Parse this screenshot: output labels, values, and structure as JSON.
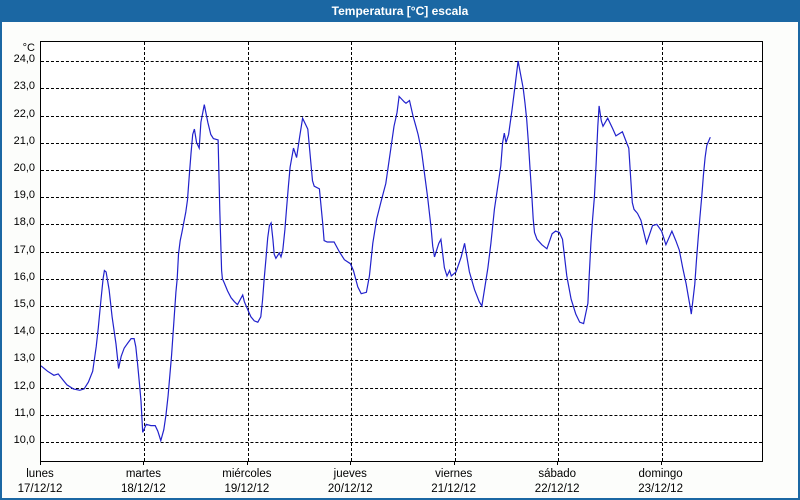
{
  "window": {
    "title": "Temperatura [°C] escala"
  },
  "colors": {
    "titlebar_bg": "#1B67A3",
    "title_text": "#FFFFFF",
    "window_border": "#1B67A3",
    "plot_border": "#000000",
    "gridline": "#000000",
    "line": "#2222CC",
    "plot_background": "#FFFFFF",
    "label_text": "#000000"
  },
  "chart_data": {
    "type": "line",
    "title": "Temperatura [°C] escala",
    "ylabel": "°C",
    "legend_position": "none",
    "grid": "dashed-both-axes",
    "y_axis": {
      "unit_label": "°C",
      "tick_min": 10,
      "tick_max": 24,
      "tick_step": 1,
      "decimal_separator": "comma",
      "visible_range": [
        9.3,
        24.7
      ]
    },
    "x_axis": {
      "unit": "hours from lunes 00:00",
      "visible_range_hours": [
        0,
        167.3
      ],
      "day_width_hours": 24,
      "days": [
        {
          "label": "lunes",
          "date": "17/12/12"
        },
        {
          "label": "martes",
          "date": "18/12/12"
        },
        {
          "label": "miércoles",
          "date": "19/12/12"
        },
        {
          "label": "jueves",
          "date": "20/12/12"
        },
        {
          "label": "viernes",
          "date": "21/12/12"
        },
        {
          "label": "sábado",
          "date": "22/12/12"
        },
        {
          "label": "domingo",
          "date": "23/12/12"
        }
      ]
    },
    "series": [
      {
        "name": "Temperatura",
        "color": "#2222CC",
        "points_hours_temp": [
          [
            0,
            12.8
          ],
          [
            1.5,
            12.6
          ],
          [
            3,
            12.45
          ],
          [
            4,
            12.5
          ],
          [
            5,
            12.3
          ],
          [
            6,
            12.1
          ],
          [
            7.5,
            11.95
          ],
          [
            9,
            11.9
          ],
          [
            10,
            11.95
          ],
          [
            11,
            12.2
          ],
          [
            12,
            12.6
          ],
          [
            12.8,
            13.5
          ],
          [
            13.3,
            14.2
          ],
          [
            13.9,
            15.2
          ],
          [
            14.4,
            16.0
          ],
          [
            14.7,
            16.3
          ],
          [
            15.1,
            16.25
          ],
          [
            15.8,
            15.6
          ],
          [
            16.5,
            14.6
          ],
          [
            17.4,
            13.6
          ],
          [
            18,
            12.7
          ],
          [
            18.6,
            13.15
          ],
          [
            19.3,
            13.45
          ],
          [
            20.2,
            13.65
          ],
          [
            20.9,
            13.8
          ],
          [
            21.6,
            13.8
          ],
          [
            22,
            13.5
          ],
          [
            22.4,
            12.9
          ],
          [
            22.8,
            12.2
          ],
          [
            23.2,
            11.5
          ],
          [
            23.6,
            10.35
          ],
          [
            24.4,
            10.65
          ],
          [
            25.5,
            10.6
          ],
          [
            26.5,
            10.6
          ],
          [
            27.1,
            10.4
          ],
          [
            27.8,
            10.05
          ],
          [
            28.5,
            10.45
          ],
          [
            29,
            11.0
          ],
          [
            29.5,
            11.7
          ],
          [
            30.3,
            13.2
          ],
          [
            31.3,
            15.5
          ],
          [
            31.6,
            16.0
          ],
          [
            31.9,
            16.9
          ],
          [
            32.3,
            17.4
          ],
          [
            32.7,
            17.7
          ],
          [
            33.6,
            18.45
          ],
          [
            34,
            18.9
          ],
          [
            34.4,
            19.8
          ],
          [
            34.8,
            20.6
          ],
          [
            35.2,
            21.3
          ],
          [
            35.6,
            21.5
          ],
          [
            36.1,
            21.0
          ],
          [
            36.7,
            20.8
          ],
          [
            37.1,
            21.75
          ],
          [
            37.9,
            22.4
          ],
          [
            38.7,
            21.75
          ],
          [
            39.4,
            21.3
          ],
          [
            40,
            21.15
          ],
          [
            41.1,
            21.1
          ],
          [
            41.5,
            18.5
          ],
          [
            41.9,
            16.3
          ],
          [
            42.1,
            16.0
          ],
          [
            42.5,
            15.85
          ],
          [
            43.3,
            15.55
          ],
          [
            44.1,
            15.3
          ],
          [
            44.9,
            15.15
          ],
          [
            45.6,
            15.05
          ],
          [
            46.8,
            15.4
          ],
          [
            47.2,
            15.15
          ],
          [
            48,
            14.85
          ],
          [
            48.7,
            14.6
          ],
          [
            49.5,
            14.45
          ],
          [
            50.3,
            14.4
          ],
          [
            51,
            14.6
          ],
          [
            51.4,
            15.2
          ],
          [
            51.8,
            16.0
          ],
          [
            52.2,
            16.75
          ],
          [
            52.6,
            17.5
          ],
          [
            53,
            17.95
          ],
          [
            53.4,
            18.05
          ],
          [
            53.8,
            17.45
          ],
          [
            54.1,
            16.9
          ],
          [
            54.5,
            16.75
          ],
          [
            55.3,
            16.95
          ],
          [
            55.7,
            16.8
          ],
          [
            56.1,
            17.05
          ],
          [
            56.6,
            17.8
          ],
          [
            57,
            18.6
          ],
          [
            57.4,
            19.4
          ],
          [
            57.8,
            20.1
          ],
          [
            58.6,
            20.8
          ],
          [
            59.3,
            20.45
          ],
          [
            60,
            21.2
          ],
          [
            60.7,
            21.9
          ],
          [
            61.9,
            21.5
          ],
          [
            63,
            19.6
          ],
          [
            63.4,
            19.4
          ],
          [
            64.6,
            19.3
          ],
          [
            65.4,
            18.0
          ],
          [
            65.7,
            17.4
          ],
          [
            66.4,
            17.35
          ],
          [
            68,
            17.35
          ],
          [
            69.2,
            17.0
          ],
          [
            70.4,
            16.7
          ],
          [
            71.8,
            16.55
          ],
          [
            72.5,
            16.3
          ],
          [
            73.5,
            15.7
          ],
          [
            74.3,
            15.45
          ],
          [
            75.5,
            15.5
          ],
          [
            76.2,
            16.1
          ],
          [
            77,
            17.3
          ],
          [
            77.9,
            18.2
          ],
          [
            79,
            18.9
          ],
          [
            80,
            19.5
          ],
          [
            81,
            20.6
          ],
          [
            81.9,
            21.6
          ],
          [
            82.6,
            22.1
          ],
          [
            83.1,
            22.7
          ],
          [
            84.3,
            22.5
          ],
          [
            84.7,
            22.45
          ],
          [
            85.5,
            22.55
          ],
          [
            86.3,
            22.0
          ],
          [
            87,
            21.6
          ],
          [
            87.5,
            21.3
          ],
          [
            88.3,
            20.7
          ],
          [
            89.7,
            19.0
          ],
          [
            90.5,
            17.9
          ],
          [
            90.9,
            17.2
          ],
          [
            91.3,
            16.8
          ],
          [
            92.3,
            17.3
          ],
          [
            92.8,
            17.45
          ],
          [
            93.6,
            16.4
          ],
          [
            94.2,
            16.1
          ],
          [
            94.8,
            16.3
          ],
          [
            95.2,
            16.1
          ],
          [
            96.3,
            16.25
          ],
          [
            97.5,
            16.8
          ],
          [
            98.3,
            17.3
          ],
          [
            99.4,
            16.25
          ],
          [
            100.6,
            15.6
          ],
          [
            101.7,
            15.15
          ],
          [
            102.3,
            15.0
          ],
          [
            103.7,
            16.4
          ],
          [
            104.4,
            17.3
          ],
          [
            105.2,
            18.55
          ],
          [
            106,
            19.4
          ],
          [
            106.7,
            20.15
          ],
          [
            107.1,
            21.0
          ],
          [
            107.5,
            21.35
          ],
          [
            107.9,
            21.0
          ],
          [
            108.5,
            21.3
          ],
          [
            109.3,
            22.2
          ],
          [
            110,
            23.1
          ],
          [
            110.7,
            24.0
          ],
          [
            111.9,
            23.0
          ],
          [
            112.3,
            22.45
          ],
          [
            112.7,
            21.85
          ],
          [
            113.1,
            21.0
          ],
          [
            113.5,
            20.0
          ],
          [
            113.9,
            19.0
          ],
          [
            114.2,
            18.2
          ],
          [
            114.5,
            17.7
          ],
          [
            115.1,
            17.45
          ],
          [
            116.2,
            17.25
          ],
          [
            117.4,
            17.1
          ],
          [
            118.6,
            17.65
          ],
          [
            119.4,
            17.75
          ],
          [
            120.3,
            17.7
          ],
          [
            121,
            17.45
          ],
          [
            122,
            16.1
          ],
          [
            123,
            15.25
          ],
          [
            124.1,
            14.7
          ],
          [
            125,
            14.4
          ],
          [
            125.9,
            14.35
          ],
          [
            126.9,
            15.1
          ],
          [
            127.2,
            16.1
          ],
          [
            127.6,
            17.3
          ],
          [
            128,
            18.2
          ],
          [
            128.4,
            19.0
          ],
          [
            128.8,
            20.2
          ],
          [
            129.2,
            21.6
          ],
          [
            129.5,
            22.35
          ],
          [
            130,
            21.8
          ],
          [
            130.4,
            21.6
          ],
          [
            131.5,
            21.9
          ],
          [
            132.7,
            21.5
          ],
          [
            133.4,
            21.25
          ],
          [
            134.9,
            21.4
          ],
          [
            136,
            20.95
          ],
          [
            136.4,
            20.8
          ],
          [
            136.8,
            19.75
          ],
          [
            137.2,
            18.8
          ],
          [
            137.6,
            18.55
          ],
          [
            138.4,
            18.4
          ],
          [
            139.2,
            18.15
          ],
          [
            140.5,
            17.3
          ],
          [
            141.9,
            17.95
          ],
          [
            142.9,
            18.0
          ],
          [
            144,
            17.75
          ],
          [
            145,
            17.25
          ],
          [
            146.4,
            17.75
          ],
          [
            147.3,
            17.4
          ],
          [
            148.1,
            17.05
          ],
          [
            148.9,
            16.4
          ],
          [
            149.7,
            15.8
          ],
          [
            150.2,
            15.35
          ],
          [
            150.6,
            15.0
          ],
          [
            150.9,
            14.7
          ],
          [
            151.7,
            15.8
          ],
          [
            152.1,
            16.7
          ],
          [
            152.5,
            17.5
          ],
          [
            152.9,
            18.25
          ],
          [
            153.3,
            19.0
          ],
          [
            153.7,
            19.8
          ],
          [
            154.1,
            20.45
          ],
          [
            154.5,
            20.9
          ],
          [
            154.9,
            21.05
          ],
          [
            155.3,
            21.2
          ]
        ]
      }
    ]
  }
}
